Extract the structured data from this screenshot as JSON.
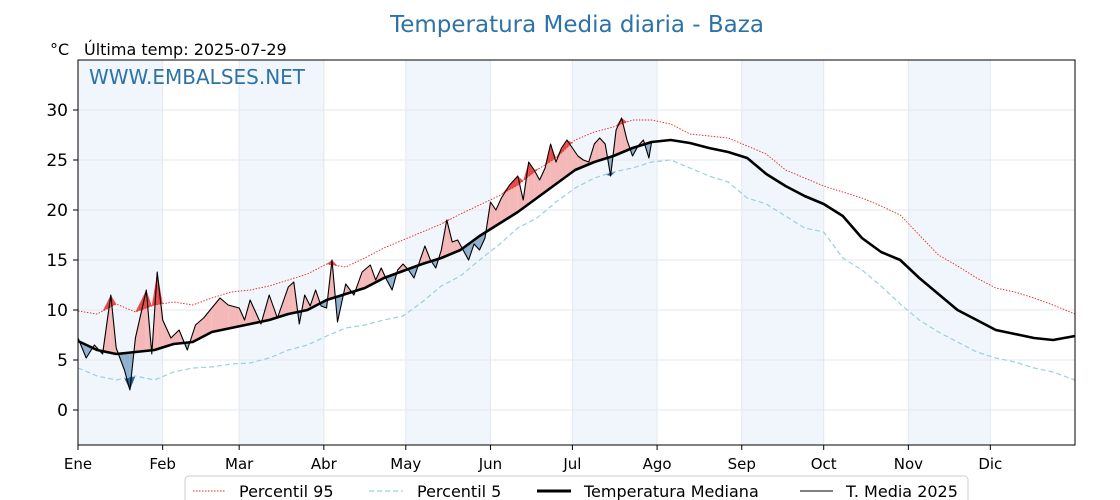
{
  "chart_data": {
    "type": "line",
    "title": "Temperatura Media diaria - Baza",
    "subtitle": "Última temp: 2025-07-29",
    "unit_label": "°C",
    "watermark": "WWW.EMBALSES.NET",
    "ylim": [
      -3.5,
      35
    ],
    "yticks": [
      0,
      5,
      10,
      15,
      20,
      25,
      30
    ],
    "xlim": [
      1,
      366
    ],
    "grid": true,
    "legend_position": "bottom",
    "months": [
      {
        "label": "Ene",
        "start": 1
      },
      {
        "label": "Feb",
        "start": 32
      },
      {
        "label": "Mar",
        "start": 60
      },
      {
        "label": "Abr",
        "start": 91
      },
      {
        "label": "May",
        "start": 121
      },
      {
        "label": "Jun",
        "start": 152
      },
      {
        "label": "Jul",
        "start": 182
      },
      {
        "label": "Ago",
        "start": 213
      },
      {
        "label": "Sep",
        "start": 244
      },
      {
        "label": "Oct",
        "start": 274
      },
      {
        "label": "Nov",
        "start": 305
      },
      {
        "label": "Dic",
        "start": 335
      }
    ],
    "shaded_months": [
      "Ene",
      "Mar",
      "May",
      "Jul",
      "Sep",
      "Nov"
    ],
    "series": [
      {
        "name": "Percentil 95",
        "style": "dotted",
        "color": "#e8261f",
        "points": [
          [
            1,
            9.9
          ],
          [
            8,
            9.6
          ],
          [
            15,
            10.6
          ],
          [
            22,
            9.8
          ],
          [
            29,
            10.5
          ],
          [
            36,
            10.8
          ],
          [
            43,
            10.5
          ],
          [
            50,
            11.2
          ],
          [
            57,
            11.8
          ],
          [
            64,
            12.0
          ],
          [
            71,
            12.4
          ],
          [
            78,
            13.0
          ],
          [
            85,
            13.6
          ],
          [
            92,
            14.6
          ],
          [
            99,
            14.3
          ],
          [
            106,
            15.2
          ],
          [
            113,
            16.2
          ],
          [
            120,
            17.0
          ],
          [
            127,
            17.8
          ],
          [
            134,
            18.6
          ],
          [
            141,
            19.6
          ],
          [
            148,
            20.5
          ],
          [
            155,
            21.4
          ],
          [
            162,
            22.5
          ],
          [
            169,
            24.0
          ],
          [
            176,
            25.2
          ],
          [
            183,
            27.0
          ],
          [
            190,
            27.8
          ],
          [
            197,
            28.3
          ],
          [
            204,
            29.0
          ],
          [
            211,
            29.0
          ],
          [
            218,
            28.6
          ],
          [
            225,
            27.6
          ],
          [
            232,
            27.4
          ],
          [
            239,
            27.2
          ],
          [
            246,
            26.4
          ],
          [
            253,
            25.6
          ],
          [
            260,
            24.0
          ],
          [
            267,
            23.2
          ],
          [
            274,
            22.4
          ],
          [
            281,
            21.8
          ],
          [
            288,
            21.2
          ],
          [
            295,
            20.4
          ],
          [
            302,
            19.5
          ],
          [
            309,
            17.5
          ],
          [
            316,
            15.5
          ],
          [
            323,
            14.4
          ],
          [
            330,
            13.2
          ],
          [
            337,
            12.2
          ],
          [
            344,
            11.8
          ],
          [
            351,
            11.2
          ],
          [
            358,
            10.5
          ],
          [
            366,
            9.6
          ]
        ]
      },
      {
        "name": "Percentil 5",
        "style": "dashed",
        "color": "#9ccfdf",
        "points": [
          [
            1,
            4.2
          ],
          [
            8,
            3.4
          ],
          [
            15,
            3.0
          ],
          [
            22,
            3.4
          ],
          [
            29,
            3.0
          ],
          [
            36,
            3.8
          ],
          [
            43,
            4.2
          ],
          [
            50,
            4.3
          ],
          [
            57,
            4.6
          ],
          [
            64,
            4.7
          ],
          [
            71,
            5.2
          ],
          [
            78,
            6.0
          ],
          [
            85,
            6.5
          ],
          [
            92,
            7.4
          ],
          [
            99,
            8.2
          ],
          [
            106,
            8.5
          ],
          [
            113,
            9.0
          ],
          [
            120,
            9.4
          ],
          [
            127,
            10.8
          ],
          [
            134,
            12.4
          ],
          [
            141,
            13.4
          ],
          [
            148,
            15.0
          ],
          [
            155,
            16.5
          ],
          [
            162,
            18.2
          ],
          [
            169,
            19.2
          ],
          [
            176,
            20.8
          ],
          [
            183,
            22.2
          ],
          [
            190,
            23.2
          ],
          [
            197,
            23.8
          ],
          [
            204,
            24.2
          ],
          [
            211,
            24.8
          ],
          [
            218,
            25.0
          ],
          [
            225,
            24.2
          ],
          [
            232,
            23.4
          ],
          [
            239,
            22.8
          ],
          [
            246,
            21.2
          ],
          [
            253,
            20.6
          ],
          [
            260,
            19.4
          ],
          [
            267,
            18.2
          ],
          [
            274,
            17.8
          ],
          [
            281,
            15.2
          ],
          [
            288,
            14.0
          ],
          [
            295,
            12.4
          ],
          [
            302,
            10.6
          ],
          [
            309,
            9.0
          ],
          [
            316,
            7.8
          ],
          [
            323,
            6.8
          ],
          [
            330,
            5.8
          ],
          [
            337,
            5.2
          ],
          [
            344,
            4.8
          ],
          [
            351,
            4.2
          ],
          [
            358,
            3.8
          ],
          [
            366,
            3.0
          ]
        ]
      },
      {
        "name": "Temperatura Mediana",
        "style": "solid-thick",
        "color": "#000000",
        "points": [
          [
            1,
            6.9
          ],
          [
            8,
            6.0
          ],
          [
            15,
            5.6
          ],
          [
            22,
            5.8
          ],
          [
            29,
            6.0
          ],
          [
            36,
            6.6
          ],
          [
            43,
            6.8
          ],
          [
            50,
            7.8
          ],
          [
            57,
            8.2
          ],
          [
            64,
            8.6
          ],
          [
            71,
            9.0
          ],
          [
            78,
            9.6
          ],
          [
            85,
            10.0
          ],
          [
            92,
            11.0
          ],
          [
            99,
            11.6
          ],
          [
            106,
            12.2
          ],
          [
            113,
            13.2
          ],
          [
            120,
            13.9
          ],
          [
            127,
            14.6
          ],
          [
            134,
            15.2
          ],
          [
            141,
            16.0
          ],
          [
            148,
            17.4
          ],
          [
            155,
            18.6
          ],
          [
            162,
            19.8
          ],
          [
            169,
            21.2
          ],
          [
            176,
            22.6
          ],
          [
            183,
            24.0
          ],
          [
            190,
            24.8
          ],
          [
            197,
            25.4
          ],
          [
            204,
            26.2
          ],
          [
            211,
            26.8
          ],
          [
            218,
            27.0
          ],
          [
            225,
            26.7
          ],
          [
            232,
            26.2
          ],
          [
            239,
            25.8
          ],
          [
            246,
            25.2
          ],
          [
            253,
            23.6
          ],
          [
            260,
            22.4
          ],
          [
            267,
            21.4
          ],
          [
            274,
            20.6
          ],
          [
            281,
            19.4
          ],
          [
            288,
            17.2
          ],
          [
            295,
            15.8
          ],
          [
            302,
            15.0
          ],
          [
            309,
            13.2
          ],
          [
            316,
            11.6
          ],
          [
            323,
            10.0
          ],
          [
            330,
            9.0
          ],
          [
            337,
            8.0
          ],
          [
            344,
            7.6
          ],
          [
            351,
            7.2
          ],
          [
            358,
            7.0
          ],
          [
            366,
            7.4
          ]
        ]
      },
      {
        "name": "T. Media 2025",
        "style": "solid-thin",
        "color": "#000000",
        "points": [
          [
            1,
            7.2
          ],
          [
            4,
            5.2
          ],
          [
            7,
            6.5
          ],
          [
            10,
            5.6
          ],
          [
            13,
            11.5
          ],
          [
            15,
            6.2
          ],
          [
            18,
            4.0
          ],
          [
            20,
            2.0
          ],
          [
            22,
            7.2
          ],
          [
            26,
            12.0
          ],
          [
            28,
            5.6
          ],
          [
            30,
            13.8
          ],
          [
            32,
            9.0
          ],
          [
            35,
            7.2
          ],
          [
            38,
            8.0
          ],
          [
            41,
            6.0
          ],
          [
            44,
            8.5
          ],
          [
            47,
            9.2
          ],
          [
            50,
            10.2
          ],
          [
            53,
            11.2
          ],
          [
            56,
            10.5
          ],
          [
            60,
            10.2
          ],
          [
            62,
            9.0
          ],
          [
            64,
            11.0
          ],
          [
            68,
            8.6
          ],
          [
            71,
            11.5
          ],
          [
            74,
            9.2
          ],
          [
            78,
            12.3
          ],
          [
            80,
            12.8
          ],
          [
            82,
            8.6
          ],
          [
            84,
            11.5
          ],
          [
            86,
            10.4
          ],
          [
            88,
            12.0
          ],
          [
            90,
            10.4
          ],
          [
            92,
            10.2
          ],
          [
            94,
            15.0
          ],
          [
            96,
            8.8
          ],
          [
            99,
            12.6
          ],
          [
            102,
            11.5
          ],
          [
            105,
            13.8
          ],
          [
            108,
            14.5
          ],
          [
            110,
            13.0
          ],
          [
            112,
            14.2
          ],
          [
            114,
            13.0
          ],
          [
            116,
            12.0
          ],
          [
            118,
            14.0
          ],
          [
            120,
            14.6
          ],
          [
            122,
            14.0
          ],
          [
            124,
            13.2
          ],
          [
            126,
            14.8
          ],
          [
            128,
            16.4
          ],
          [
            130,
            15.0
          ],
          [
            132,
            14.2
          ],
          [
            134,
            16.0
          ],
          [
            136,
            19.0
          ],
          [
            138,
            16.8
          ],
          [
            140,
            17.0
          ],
          [
            142,
            16.0
          ],
          [
            144,
            15.0
          ],
          [
            146,
            16.6
          ],
          [
            148,
            16.0
          ],
          [
            150,
            17.2
          ],
          [
            152,
            20.8
          ],
          [
            154,
            20.0
          ],
          [
            156,
            21.2
          ],
          [
            159,
            22.5
          ],
          [
            162,
            23.4
          ],
          [
            164,
            21.0
          ],
          [
            166,
            24.8
          ],
          [
            168,
            24.0
          ],
          [
            170,
            23.0
          ],
          [
            172,
            24.2
          ],
          [
            174,
            26.6
          ],
          [
            176,
            24.8
          ],
          [
            178,
            26.2
          ],
          [
            180,
            27.0
          ],
          [
            182,
            26.2
          ],
          [
            184,
            25.4
          ],
          [
            186,
            25.0
          ],
          [
            188,
            24.8
          ],
          [
            190,
            26.6
          ],
          [
            192,
            27.2
          ],
          [
            194,
            26.6
          ],
          [
            196,
            23.4
          ],
          [
            198,
            28.0
          ],
          [
            200,
            29.2
          ],
          [
            202,
            27.0
          ],
          [
            204,
            25.4
          ],
          [
            206,
            26.4
          ],
          [
            208,
            27.0
          ],
          [
            210,
            25.2
          ],
          [
            211,
            26.8
          ]
        ]
      }
    ]
  }
}
